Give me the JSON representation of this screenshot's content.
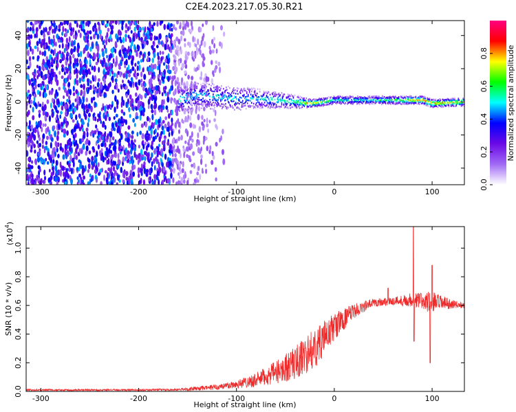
{
  "title": "C2E4.2023.217.05.30.R21",
  "colors": {
    "snr_line": "#ee2a2a",
    "noise_dots": "#7f1be8",
    "background": "#ffffff"
  },
  "chart_data": [
    {
      "type": "heatmap",
      "name": "spectrogram",
      "xlabel": "Height of straight line (km)",
      "ylabel": "Frequency (Hz)",
      "xlim": [
        -315,
        133
      ],
      "ylim": [
        -50,
        49
      ],
      "xticks": [
        -300,
        -200,
        -100,
        0,
        100
      ],
      "yticks": [
        -40,
        -20,
        0,
        20,
        40
      ],
      "colorbar": {
        "label": "Normalized spectral amplitude",
        "range": [
          0,
          1
        ],
        "ticks": [
          0.0,
          0.2,
          0.4,
          0.6,
          0.8
        ],
        "colormap": [
          "#ffffff",
          "#a06af5",
          "#6b0ae6",
          "#0000ff",
          "#00ffff",
          "#00ff00",
          "#ffff00",
          "#ff0000",
          "#ff0080"
        ]
      },
      "noise_region": {
        "x": [
          -315,
          -110
        ],
        "amplitude": 0.35,
        "fade_start": -165
      },
      "signal_band": [
        {
          "x": -160,
          "freq": 1,
          "width": 16,
          "amplitude": 0.55
        },
        {
          "x": -140,
          "freq": 4,
          "width": 16,
          "amplitude": 0.5
        },
        {
          "x": -120,
          "freq": 3,
          "width": 15,
          "amplitude": 0.5
        },
        {
          "x": -100,
          "freq": 2,
          "width": 14,
          "amplitude": 0.5
        },
        {
          "x": -80,
          "freq": 2,
          "width": 12,
          "amplitude": 0.5
        },
        {
          "x": -60,
          "freq": 1,
          "width": 10,
          "amplitude": 0.55
        },
        {
          "x": -40,
          "freq": 0,
          "width": 8,
          "amplitude": 0.6
        },
        {
          "x": -25,
          "freq": -1,
          "width": 5,
          "amplitude": 0.85
        },
        {
          "x": 0,
          "freq": 1,
          "width": 5,
          "amplitude": 0.55
        },
        {
          "x": 40,
          "freq": 1,
          "width": 5,
          "amplitude": 0.55
        },
        {
          "x": 70,
          "freq": 1,
          "width": 5,
          "amplitude": 0.7
        },
        {
          "x": 90,
          "freq": 1,
          "width": 5,
          "amplitude": 0.85
        },
        {
          "x": 100,
          "freq": -1,
          "width": 5,
          "amplitude": 0.8
        },
        {
          "x": 133,
          "freq": 0,
          "width": 5,
          "amplitude": 0.8
        }
      ]
    },
    {
      "type": "line",
      "name": "snr",
      "xlabel": "Height of straight line (km)",
      "ylabel": "SNR (10 * v/v)",
      "yscale_label": "(x10",
      "yscale_exp": "4",
      "xlim": [
        -315,
        133
      ],
      "ylim": [
        0,
        1.15
      ],
      "xticks": [
        -300,
        -200,
        -100,
        0,
        100
      ],
      "yticks": [
        0.0,
        0.2,
        0.4,
        0.6,
        0.8,
        1.0
      ],
      "series": [
        {
          "envelope_x": [
            -315,
            -200,
            -160,
            -140,
            -120,
            -100,
            -80,
            -60,
            -40,
            -20,
            0,
            20,
            40,
            60,
            80,
            100,
            120,
            133
          ],
          "envelope_mean": [
            0.01,
            0.01,
            0.012,
            0.02,
            0.03,
            0.05,
            0.08,
            0.13,
            0.2,
            0.3,
            0.45,
            0.56,
            0.62,
            0.63,
            0.64,
            0.62,
            0.61,
            0.6
          ],
          "envelope_spread": [
            0.006,
            0.006,
            0.008,
            0.015,
            0.02,
            0.03,
            0.05,
            0.08,
            0.12,
            0.14,
            0.1,
            0.05,
            0.03,
            0.03,
            0.05,
            0.08,
            0.03,
            0.02
          ],
          "spikes": [
            {
              "x": 81,
              "y": 1.15
            },
            {
              "x": 81.5,
              "y": 0.35
            },
            {
              "x": 100,
              "y": 0.88
            },
            {
              "x": 98,
              "y": 0.2
            },
            {
              "x": 55,
              "y": 0.72
            }
          ]
        }
      ]
    }
  ]
}
